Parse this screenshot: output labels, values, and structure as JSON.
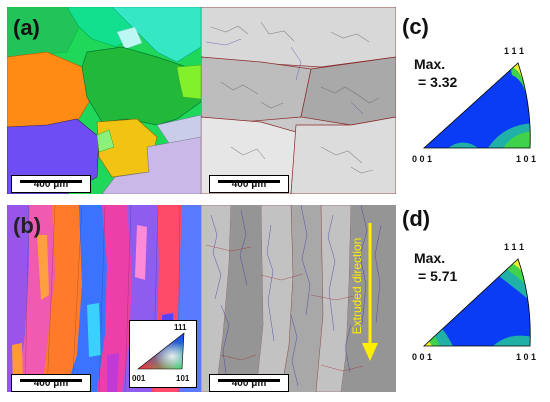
{
  "panel_labels": {
    "a": "(a)",
    "b": "(b)",
    "c": "(c)",
    "d": "(d)"
  },
  "scale_bars": {
    "a_ipf": "400 μm",
    "a_band": "400 μm",
    "b_ipf": "400 μm",
    "b_band": "400 μm"
  },
  "legend": {
    "top": "111",
    "bottom_left": "001",
    "bottom_right": "101"
  },
  "annotation": {
    "direction": "Extruded direction"
  },
  "pole_figures": {
    "c": {
      "max_label": "Max.",
      "max_value": "= 3.32",
      "corner_top": "1 1 1",
      "corner_left": "0 0 1",
      "corner_right": "1 0 1"
    },
    "d": {
      "max_label": "Max.",
      "max_value": "= 5.71",
      "corner_top": "1 1 1",
      "corner_left": "0 0 1",
      "corner_right": "1 0 1"
    }
  },
  "colors": {
    "ipf_blue": "#1a3cff",
    "ipf_green": "#2fe06a",
    "ipf_red": "#ff2a3a",
    "pf_blue": "#0a3cf5",
    "pf_cyan": "#1fb0a8",
    "pf_green": "#3fd24a",
    "pf_yellow": "#e9ee2a",
    "pf_orange": "#f29a22",
    "arrow_yellow": "#ffee00"
  }
}
